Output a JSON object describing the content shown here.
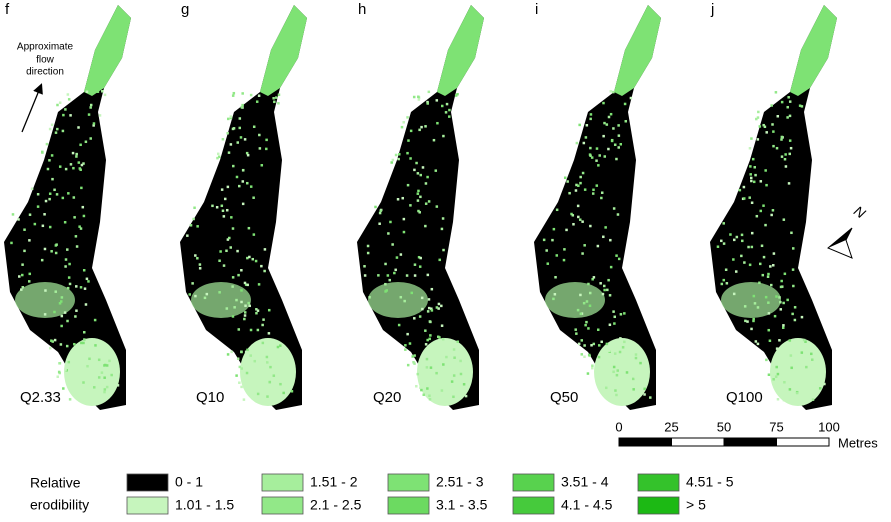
{
  "panels": [
    {
      "letter": "f",
      "label": "Q2.33"
    },
    {
      "letter": "g",
      "label": "Q10"
    },
    {
      "letter": "h",
      "label": "Q20"
    },
    {
      "letter": "i",
      "label": "Q50"
    },
    {
      "letter": "j",
      "label": "Q100"
    }
  ],
  "flow_annotation": [
    "Approximate",
    "flow",
    "direction"
  ],
  "north": "N",
  "scale_bar": {
    "ticks": [
      0,
      25,
      50,
      75,
      100
    ],
    "unit": "Metres"
  },
  "legend": {
    "title": [
      "Relative",
      "erodibility"
    ],
    "classes": [
      {
        "label": "0 - 1",
        "color": "#000000"
      },
      {
        "label": "1.01 - 1.5",
        "color": "#c6f5bd"
      },
      {
        "label": "1.51 - 2",
        "color": "#a6ee9c"
      },
      {
        "label": "2.1 - 2.5",
        "color": "#92e888"
      },
      {
        "label": "2.51 - 3",
        "color": "#7ee274"
      },
      {
        "label": "3.1 - 3.5",
        "color": "#6cda61"
      },
      {
        "label": "3.51 - 4",
        "color": "#58d24e"
      },
      {
        "label": "4.1 - 4.5",
        "color": "#46ca3c"
      },
      {
        "label": "4.51 - 5",
        "color": "#34c22b"
      },
      {
        "label": "> 5",
        "color": "#1cb914"
      }
    ]
  }
}
